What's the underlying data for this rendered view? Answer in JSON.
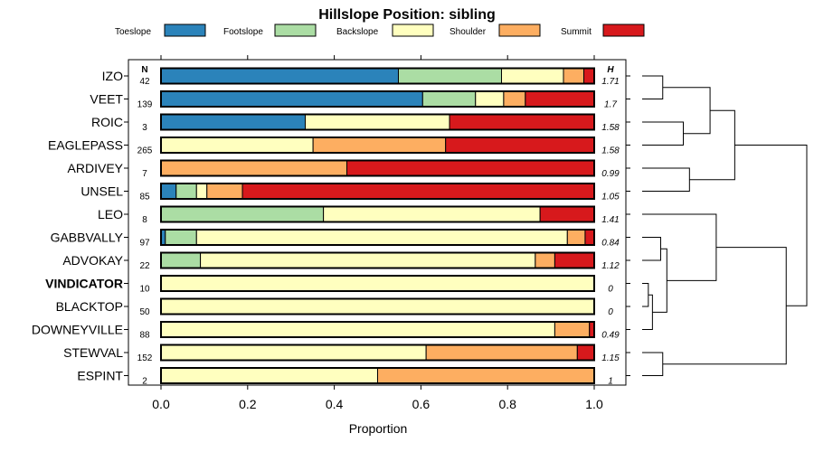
{
  "chart_data": {
    "type": "bar",
    "stacked": true,
    "orientation": "horizontal",
    "title": "Hillslope Position: sibling",
    "xlabel": "Proportion",
    "xlim": [
      0,
      1
    ],
    "xticks": [
      "0.0",
      "0.2",
      "0.4",
      "0.6",
      "0.8",
      "1.0"
    ],
    "xtick_values": [
      0,
      0.2,
      0.4,
      0.6,
      0.8,
      1.0
    ],
    "n_header": "N",
    "h_header": "H",
    "legend": [
      {
        "name": "Toeslope",
        "color": "#2b83ba"
      },
      {
        "name": "Footslope",
        "color": "#abdda4"
      },
      {
        "name": "Backslope",
        "color": "#ffffbf"
      },
      {
        "name": "Shoulder",
        "color": "#fdae61"
      },
      {
        "name": "Summit",
        "color": "#d7191c"
      }
    ],
    "rows": [
      {
        "name": "IZO",
        "bold": false,
        "n": "42",
        "h": "1.71",
        "values": [
          0.548,
          0.238,
          0.143,
          0.047,
          0.024
        ]
      },
      {
        "name": "VEET",
        "bold": false,
        "n": "139",
        "h": "1.7",
        "values": [
          0.604,
          0.122,
          0.065,
          0.05,
          0.159
        ]
      },
      {
        "name": "ROIC",
        "bold": false,
        "n": "3",
        "h": "1.58",
        "values": [
          0.333,
          0,
          0.333,
          0,
          0.334
        ]
      },
      {
        "name": "EAGLEPASS",
        "bold": false,
        "n": "265",
        "h": "1.58",
        "values": [
          0,
          0,
          0.351,
          0.306,
          0.343
        ]
      },
      {
        "name": "ARDIVEY",
        "bold": false,
        "n": "7",
        "h": "0.99",
        "values": [
          0,
          0,
          0,
          0.429,
          0.571
        ]
      },
      {
        "name": "UNSEL",
        "bold": false,
        "n": "85",
        "h": "1.05",
        "values": [
          0.035,
          0.047,
          0.024,
          0.082,
          0.812
        ]
      },
      {
        "name": "LEO",
        "bold": false,
        "n": "8",
        "h": "1.41",
        "values": [
          0,
          0.375,
          0.5,
          0,
          0.125
        ]
      },
      {
        "name": "GABBVALLY",
        "bold": false,
        "n": "97",
        "h": "0.84",
        "values": [
          0.01,
          0.072,
          0.856,
          0.041,
          0.021
        ]
      },
      {
        "name": "ADVOKAY",
        "bold": false,
        "n": "22",
        "h": "1.12",
        "values": [
          0,
          0.091,
          0.773,
          0.045,
          0.091
        ]
      },
      {
        "name": "VINDICATOR",
        "bold": true,
        "n": "10",
        "h": "0",
        "values": [
          0,
          0,
          1.0,
          0,
          0
        ]
      },
      {
        "name": "BLACKTOP",
        "bold": false,
        "n": "50",
        "h": "0",
        "values": [
          0,
          0,
          1.0,
          0,
          0
        ]
      },
      {
        "name": "DOWNEYVILLE",
        "bold": false,
        "n": "88",
        "h": "0.49",
        "values": [
          0,
          0,
          0.909,
          0.08,
          0.011
        ]
      },
      {
        "name": "STEWVAL",
        "bold": false,
        "n": "152",
        "h": "1.15",
        "values": [
          0,
          0,
          0.612,
          0.349,
          0.039
        ]
      },
      {
        "name": "ESPINT",
        "bold": false,
        "n": "2",
        "h": "1",
        "values": [
          0,
          0,
          0.5,
          0.5,
          0
        ]
      }
    ],
    "dendrogram": {
      "leaf_order": [
        "IZO",
        "VEET",
        "ROIC",
        "EAGLEPASS",
        "ARDIVEY",
        "UNSEL",
        "LEO",
        "GABBVALLY",
        "ADVOKAY",
        "VINDICATOR",
        "BLACKTOP",
        "DOWNEYVILLE",
        "STEWVAL",
        "ESPINT"
      ],
      "merges": [
        {
          "a": "IZO",
          "b": "VEET",
          "height": 0.1
        },
        {
          "a": "ROIC",
          "b": "EAGLEPASS",
          "height": 0.2
        },
        {
          "a": "ARDIVEY",
          "b": "UNSEL",
          "height": 0.23
        },
        {
          "a": "m1",
          "b": "m2",
          "height": 0.33
        },
        {
          "a": "m3",
          "b": "m4",
          "height": 0.45
        },
        {
          "a": "VINDICATOR",
          "b": "BLACKTOP",
          "height": 0.03
        },
        {
          "a": "m6",
          "b": "DOWNEYVILLE",
          "height": 0.05
        },
        {
          "a": "GABBVALLY",
          "b": "ADVOKAY",
          "height": 0.09
        },
        {
          "a": "m8",
          "b": "m7",
          "height": 0.12
        },
        {
          "a": "LEO",
          "b": "m9",
          "height": 0.36
        },
        {
          "a": "STEWVAL",
          "b": "ESPINT",
          "height": 0.1
        },
        {
          "a": "m10",
          "b": "m11",
          "height": 0.7
        },
        {
          "a": "m5",
          "b": "m12",
          "height": 0.8
        }
      ]
    }
  }
}
